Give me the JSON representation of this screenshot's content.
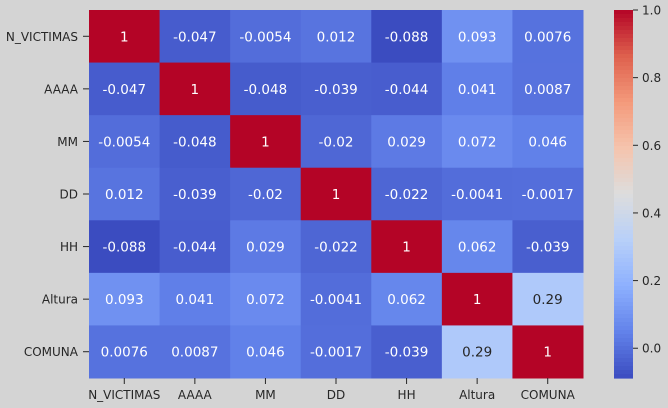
{
  "chart_data": {
    "type": "heatmap",
    "title": "",
    "xlabel": "",
    "ylabel": "",
    "row_labels": [
      "N_VICTIMAS",
      "AAAA",
      "MM",
      "DD",
      "HH",
      "Altura",
      "COMUNA"
    ],
    "col_labels": [
      "N_VICTIMAS",
      "AAAA",
      "MM",
      "DD",
      "HH",
      "Altura",
      "COMUNA"
    ],
    "cell_labels": [
      [
        "1",
        "-0.047",
        "-0.0054",
        "0.012",
        "-0.088",
        "0.093",
        "0.0076"
      ],
      [
        "-0.047",
        "1",
        "-0.048",
        "-0.039",
        "-0.044",
        "0.041",
        "0.0087"
      ],
      [
        "-0.0054",
        "-0.048",
        "1",
        "-0.02",
        "0.029",
        "0.072",
        "0.046"
      ],
      [
        "0.012",
        "-0.039",
        "-0.02",
        "1",
        "-0.022",
        "-0.0041",
        "-0.0017"
      ],
      [
        "-0.088",
        "-0.044",
        "0.029",
        "-0.022",
        "1",
        "0.062",
        "-0.039"
      ],
      [
        "0.093",
        "0.041",
        "0.072",
        "-0.0041",
        "0.062",
        "1",
        "0.29"
      ],
      [
        "0.0076",
        "0.0087",
        "0.046",
        "-0.0017",
        "-0.039",
        "0.29",
        "1"
      ]
    ],
    "values": [
      [
        1,
        -0.047,
        -0.0054,
        0.012,
        -0.088,
        0.093,
        0.0076
      ],
      [
        -0.047,
        1,
        -0.048,
        -0.039,
        -0.044,
        0.041,
        0.0087
      ],
      [
        -0.0054,
        -0.048,
        1,
        -0.02,
        0.029,
        0.072,
        0.046
      ],
      [
        0.012,
        -0.039,
        -0.02,
        1,
        -0.022,
        -0.0041,
        -0.0017
      ],
      [
        -0.088,
        -0.044,
        0.029,
        -0.022,
        1,
        0.062,
        -0.039
      ],
      [
        0.093,
        0.041,
        0.072,
        -0.0041,
        0.062,
        1,
        0.29
      ],
      [
        0.0076,
        0.0087,
        0.046,
        -0.0017,
        -0.039,
        0.29,
        1
      ]
    ],
    "colormap": "coolwarm",
    "vmin": -0.088,
    "vmax": 1,
    "colorbar_ticks": [
      0.0,
      0.2,
      0.4,
      0.6,
      0.8,
      1.0
    ],
    "colorbar_tick_labels": [
      "0.0",
      "0.2",
      "0.4",
      "0.6",
      "0.8",
      "1.0"
    ]
  }
}
